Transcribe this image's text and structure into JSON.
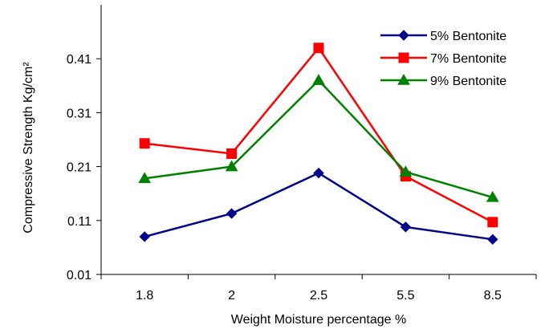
{
  "chart_data": {
    "type": "line",
    "categories": [
      "1.8",
      "2",
      "2.5",
      "5.5",
      "8.5"
    ],
    "series": [
      {
        "name": "5% Bentonite",
        "values": [
          0.08,
          0.123,
          0.198,
          0.098,
          0.075
        ],
        "color": "#00008B",
        "marker": "diamond"
      },
      {
        "name": "7% Bentonite",
        "values": [
          0.253,
          0.234,
          0.43,
          0.192,
          0.107
        ],
        "color": "#FF0000",
        "marker": "square"
      },
      {
        "name": "9% Bentonite",
        "values": [
          0.188,
          0.21,
          0.37,
          0.2,
          0.153
        ],
        "color": "#008000",
        "marker": "triangle"
      }
    ],
    "xlabel": "Weight Moisture percentage %",
    "ylabel": "Compressive Strength Kg/cm²",
    "ylim": [
      0.01,
      0.51
    ],
    "yticks": [
      "0.01",
      "0.11",
      "0.21",
      "0.31",
      "0.41"
    ],
    "grid": false,
    "legend_position": "top-right"
  }
}
